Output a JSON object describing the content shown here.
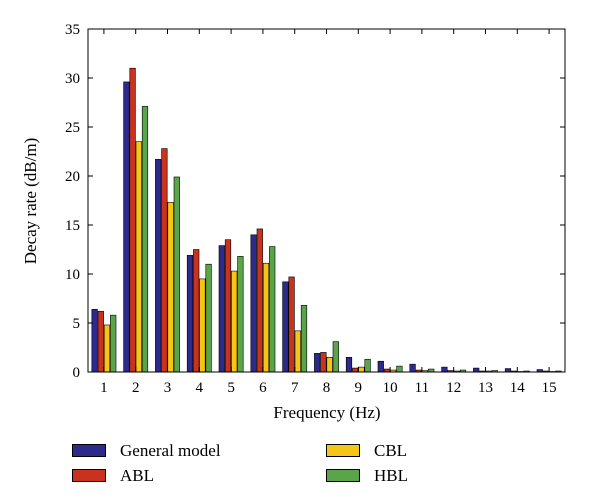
{
  "chart_data": {
    "type": "bar",
    "title": "",
    "xlabel": "Frequency (Hz)",
    "ylabel": "Decay rate (dB/m)",
    "categories": [
      "1",
      "2",
      "3",
      "4",
      "5",
      "6",
      "7",
      "8",
      "9",
      "10",
      "11",
      "12",
      "13",
      "14",
      "15"
    ],
    "ylim": [
      0,
      35
    ],
    "yticks": [
      "0",
      "5",
      "10",
      "15",
      "20",
      "25",
      "30",
      "35"
    ],
    "grid": false,
    "legend_position": "bottom",
    "series": [
      {
        "name": "General model",
        "color": "#2e2a8c",
        "values": [
          6.4,
          29.6,
          21.7,
          11.9,
          12.9,
          14.0,
          9.2,
          1.9,
          1.5,
          1.1,
          0.8,
          0.5,
          0.4,
          0.35,
          0.25
        ]
      },
      {
        "name": "ABL",
        "color": "#c8321e",
        "values": [
          6.2,
          31.0,
          22.8,
          12.5,
          13.5,
          14.6,
          9.7,
          2.0,
          0.4,
          0.3,
          0.2,
          0.15,
          0.1,
          0.1,
          0.1
        ]
      },
      {
        "name": "CBL",
        "color": "#f5c518",
        "values": [
          4.8,
          23.5,
          17.3,
          9.5,
          10.3,
          11.1,
          4.2,
          1.5,
          0.5,
          0.2,
          0.15,
          0.1,
          0.1,
          0.05,
          0.05
        ]
      },
      {
        "name": "HBL",
        "color": "#5aa54a",
        "values": [
          5.8,
          27.1,
          19.9,
          11.0,
          11.8,
          12.8,
          6.8,
          3.1,
          1.3,
          0.6,
          0.3,
          0.2,
          0.15,
          0.1,
          0.1
        ]
      }
    ]
  }
}
